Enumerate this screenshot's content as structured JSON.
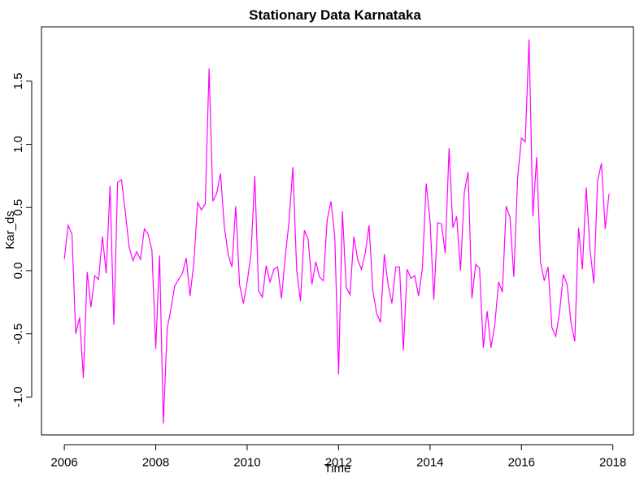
{
  "chart_data": {
    "type": "line",
    "title": "Stationary Data Karnataka",
    "xlabel": "Time",
    "ylabel": "Kar_ds",
    "xlim": [
      2005.5,
      2018.45
    ],
    "ylim": [
      -1.3,
      1.93
    ],
    "x_ticks": [
      2006,
      2008,
      2010,
      2012,
      2014,
      2016,
      2018
    ],
    "x_tick_labels": [
      "2006",
      "2008",
      "2010",
      "2012",
      "2014",
      "2016",
      "2018"
    ],
    "y_ticks": [
      -1.0,
      -0.5,
      0.0,
      0.5,
      1.0,
      1.5
    ],
    "y_tick_labels": [
      "-1.0",
      "-0.5",
      "0.0",
      "0.5",
      "1.0",
      "1.5"
    ],
    "grid": false,
    "line_color": "#ff00ff",
    "series": [
      {
        "start_year": 2006,
        "frequency": 12,
        "values": [
          0.09,
          0.36,
          0.29,
          -0.5,
          -0.37,
          -0.85,
          -0.01,
          -0.29,
          -0.04,
          -0.07,
          0.27,
          -0.02,
          0.67,
          -0.43,
          0.7,
          0.72,
          0.47,
          0.19,
          0.08,
          0.15,
          0.09,
          0.33,
          0.29,
          0.16,
          -0.62,
          0.12,
          -1.21,
          -0.46,
          -0.3,
          -0.12,
          -0.07,
          -0.02,
          0.1,
          -0.2,
          0.06,
          0.54,
          0.48,
          0.53,
          1.6,
          0.55,
          0.61,
          0.77,
          0.35,
          0.13,
          0.03,
          0.51,
          -0.11,
          -0.26,
          -0.09,
          0.13,
          0.75,
          -0.16,
          -0.21,
          0.04,
          -0.09,
          0.01,
          0.03,
          -0.22,
          0.11,
          0.39,
          0.82,
          0.0,
          -0.24,
          0.32,
          0.25,
          -0.11,
          0.07,
          -0.05,
          -0.08,
          0.4,
          0.55,
          0.27,
          -0.82,
          0.47,
          -0.13,
          -0.19,
          0.27,
          0.09,
          0.01,
          0.14,
          0.36,
          -0.16,
          -0.34,
          -0.41,
          0.13,
          -0.11,
          -0.26,
          0.03,
          0.03,
          -0.63,
          0.01,
          -0.06,
          -0.04,
          -0.2,
          0.02,
          0.69,
          0.4,
          -0.23,
          0.38,
          0.37,
          0.14,
          0.97,
          0.34,
          0.43,
          0.0,
          0.62,
          0.78,
          -0.22,
          0.05,
          0.02,
          -0.61,
          -0.32,
          -0.61,
          -0.43,
          -0.09,
          -0.17,
          0.51,
          0.42,
          -0.05,
          0.73,
          1.05,
          1.02,
          1.83,
          0.43,
          0.9,
          0.07,
          -0.08,
          0.03,
          -0.45,
          -0.52,
          -0.33,
          -0.03,
          -0.11,
          -0.41,
          -0.56,
          0.34,
          0.01,
          0.66,
          0.17,
          -0.1,
          0.71,
          0.85,
          0.33,
          0.61
        ]
      }
    ]
  }
}
